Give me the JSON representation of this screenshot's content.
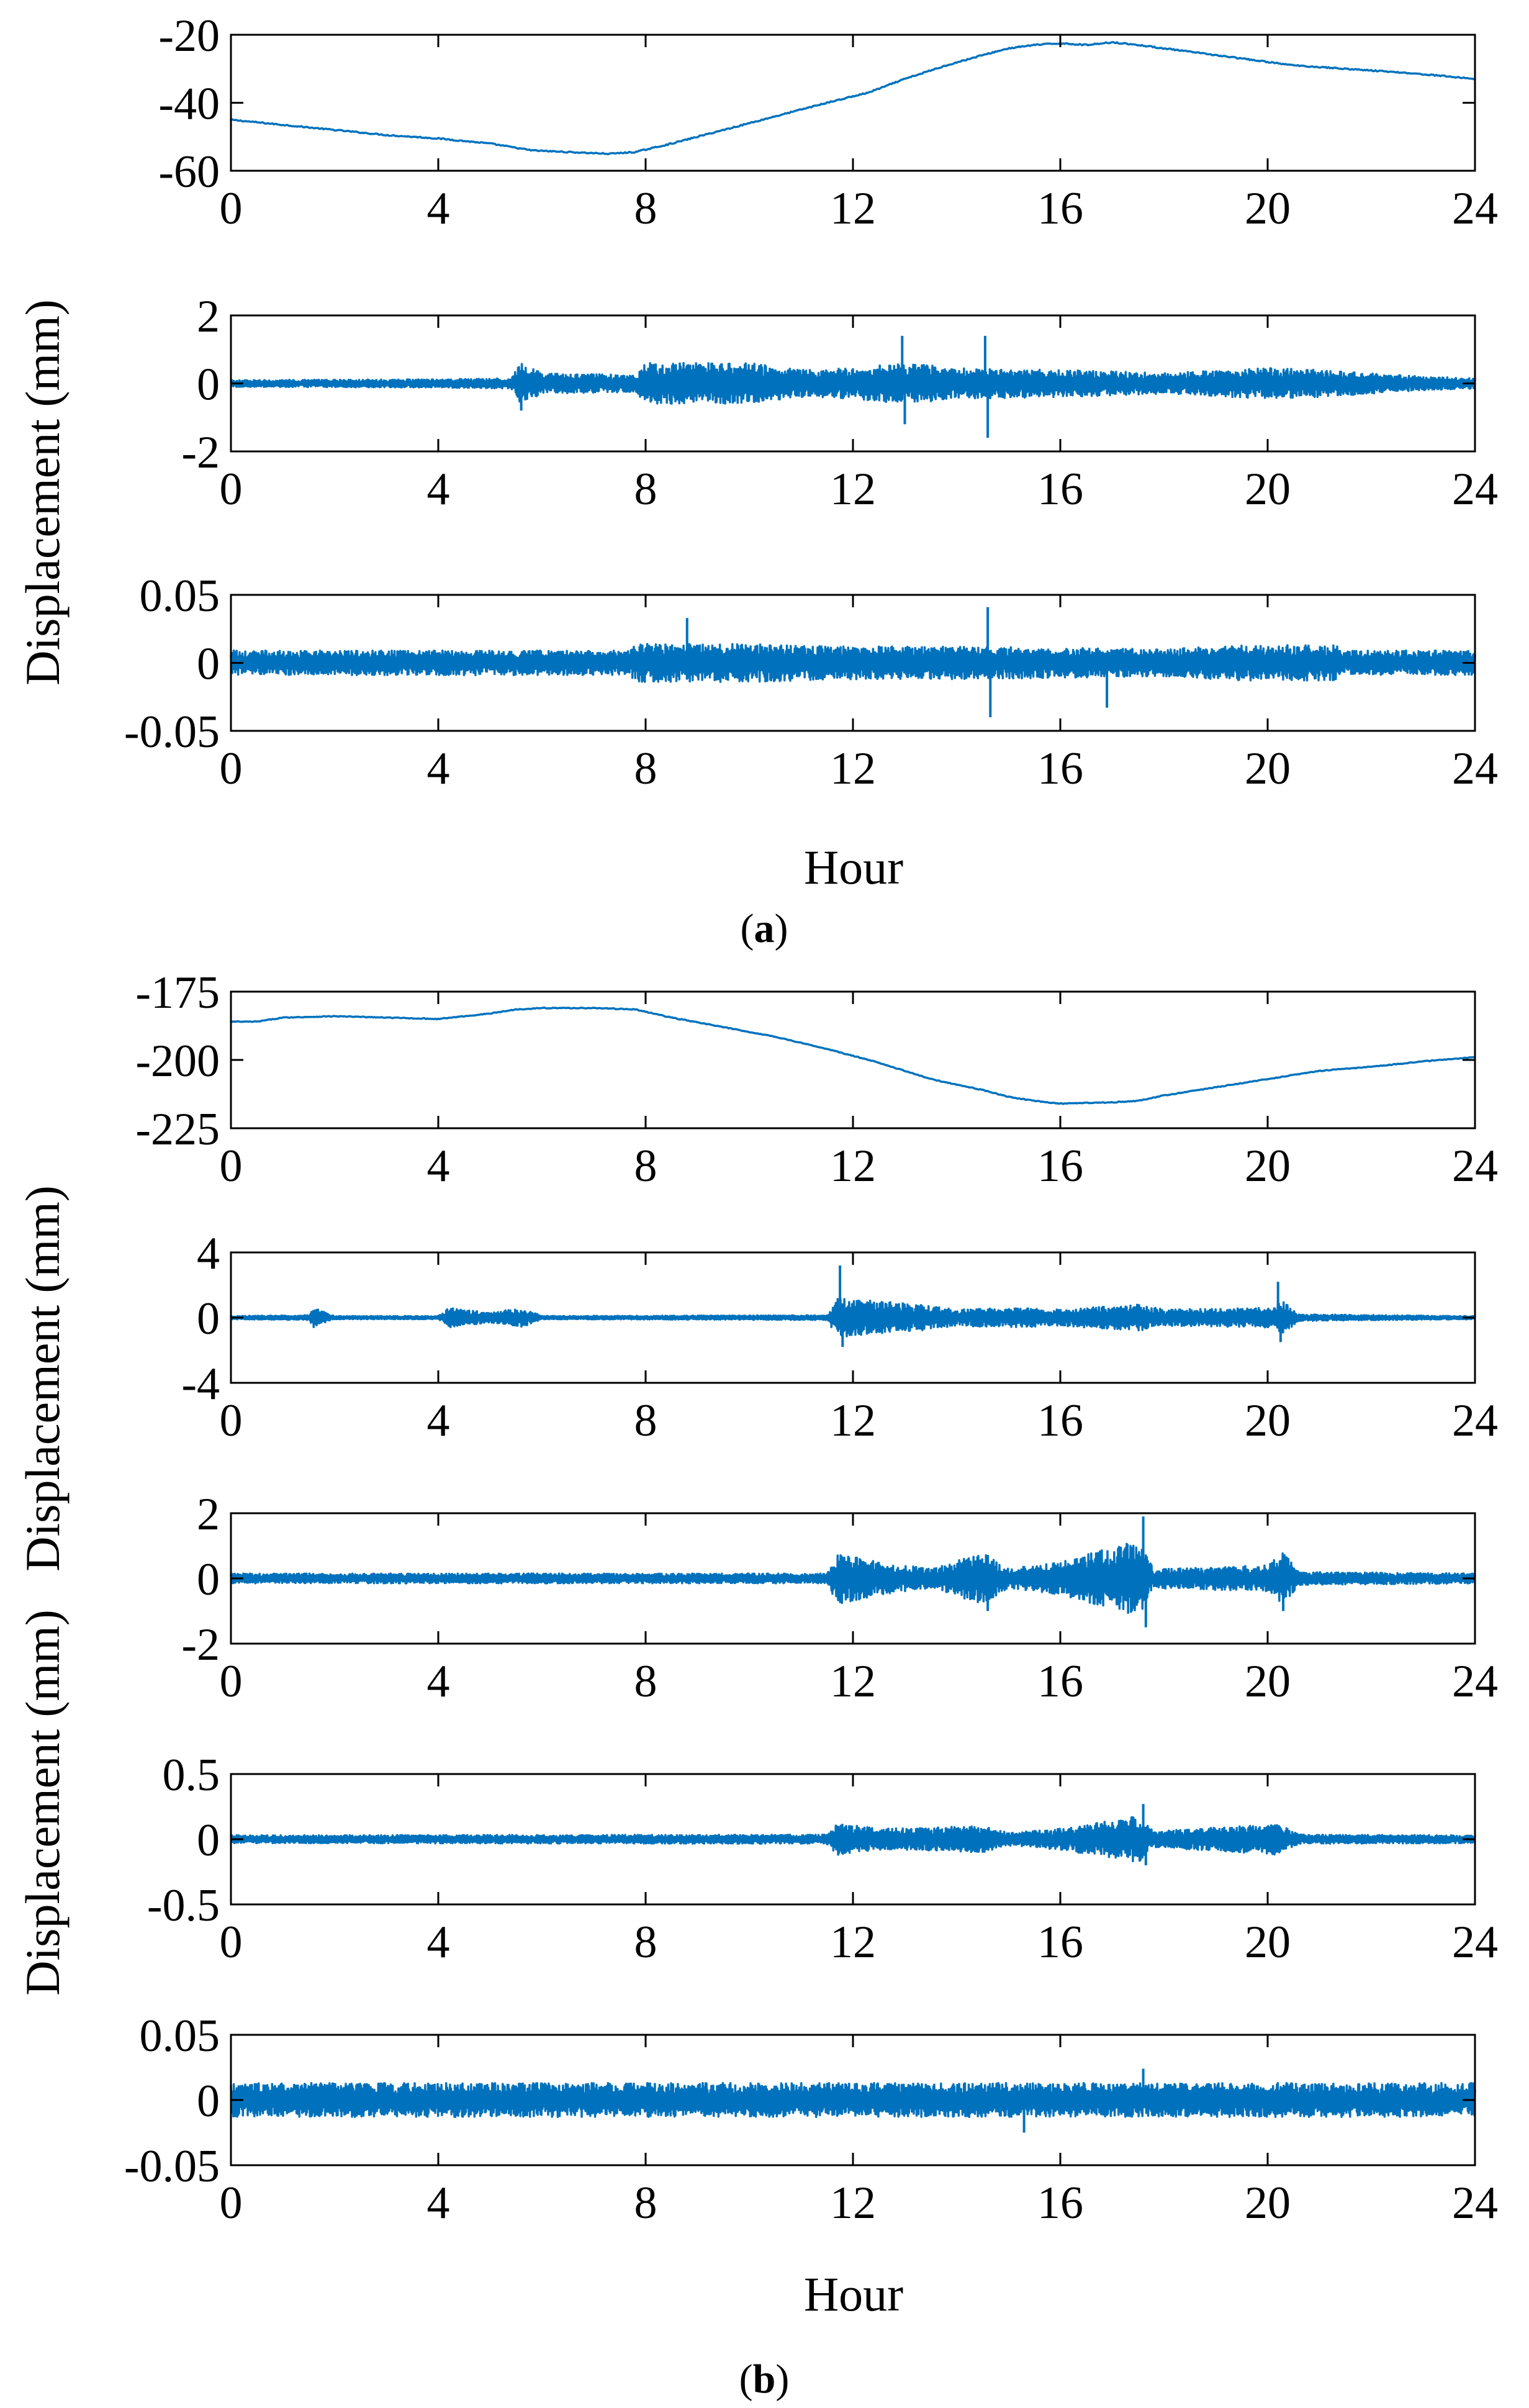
{
  "figure": {
    "panel_a_label": {
      "open": "(",
      "letter": "a",
      "close": ")"
    },
    "panel_b_label": {
      "open": "(",
      "letter": "b",
      "close": ")"
    },
    "xlabel": "Hour",
    "ylabel": "Displacement (mm)"
  },
  "colors": {
    "series": "#0072BD",
    "axis": "#000000"
  },
  "chart_data": [
    {
      "type": "line",
      "group": "a",
      "subplot": 1,
      "title": "",
      "xlabel": "",
      "ylabel": "Displacement (mm)",
      "xlim": [
        0,
        24
      ],
      "ylim": [
        -60,
        -20
      ],
      "xticks": [
        "0",
        "4",
        "8",
        "12",
        "16",
        "20",
        "24"
      ],
      "yticks": [
        "-20",
        "-40",
        "-60"
      ],
      "x": [
        0,
        1,
        2,
        3,
        4,
        5,
        5.8,
        6.5,
        7.3,
        7.8,
        8.5,
        9.5,
        10.5,
        11.5,
        12.3,
        13,
        13.8,
        14.5,
        15,
        15.5,
        16,
        16.5,
        17,
        17.5,
        18.5,
        19.5,
        20.5,
        21.5,
        22.5,
        23.3,
        24
      ],
      "y": [
        -45,
        -46.5,
        -48,
        -49.5,
        -50.5,
        -52,
        -54,
        -54.5,
        -55,
        -54.5,
        -52,
        -48,
        -44,
        -40,
        -37,
        -33,
        -29,
        -26,
        -24,
        -23,
        -22.5,
        -23,
        -22.2,
        -23,
        -25,
        -27,
        -29,
        -30,
        -31,
        -32,
        -33
      ],
      "noise": 0.35
    },
    {
      "type": "line",
      "group": "a",
      "subplot": 2,
      "title": "",
      "xlabel": "",
      "ylabel": "",
      "xlim": [
        0,
        24
      ],
      "ylim": [
        -2,
        2
      ],
      "xticks": [
        "0",
        "4",
        "8",
        "12",
        "16",
        "20",
        "24"
      ],
      "yticks": [
        "2",
        "0",
        "-2"
      ],
      "envelope": [
        [
          0,
          0.1
        ],
        [
          4,
          0.12
        ],
        [
          5.4,
          0.15
        ],
        [
          5.6,
          0.6
        ],
        [
          6,
          0.3
        ],
        [
          7.8,
          0.25
        ],
        [
          8,
          0.6
        ],
        [
          10,
          0.6
        ],
        [
          11,
          0.4
        ],
        [
          12,
          0.45
        ],
        [
          13,
          0.6
        ],
        [
          14,
          0.45
        ],
        [
          16,
          0.4
        ],
        [
          17,
          0.35
        ],
        [
          18,
          0.3
        ],
        [
          20,
          0.45
        ],
        [
          21,
          0.4
        ],
        [
          22,
          0.3
        ],
        [
          23,
          0.2
        ],
        [
          24,
          0.15
        ]
      ],
      "spikes": [
        {
          "x": 5.6,
          "y": -0.8
        },
        {
          "x": 12.95,
          "y": 1.4
        },
        {
          "x": 13.0,
          "y": -1.2
        },
        {
          "x": 14.55,
          "y": 1.4
        },
        {
          "x": 14.6,
          "y": -1.6
        }
      ]
    },
    {
      "type": "line",
      "group": "a",
      "subplot": 3,
      "title": "",
      "xlabel": "Hour",
      "ylabel": "",
      "xlim": [
        0,
        24
      ],
      "ylim": [
        -0.05,
        0.05
      ],
      "xticks": [
        "0",
        "4",
        "8",
        "12",
        "16",
        "20",
        "24"
      ],
      "yticks": [
        "0.05",
        "0",
        "-0.05"
      ],
      "envelope": [
        [
          0,
          0.009
        ],
        [
          7.7,
          0.009
        ],
        [
          7.8,
          0.014
        ],
        [
          10,
          0.014
        ],
        [
          12,
          0.012
        ],
        [
          14,
          0.012
        ],
        [
          16,
          0.011
        ],
        [
          18,
          0.01
        ],
        [
          19.5,
          0.013
        ],
        [
          21.3,
          0.013
        ],
        [
          21.5,
          0.009
        ],
        [
          24,
          0.009
        ]
      ],
      "spikes": [
        {
          "x": 8.8,
          "y": 0.033
        },
        {
          "x": 14.6,
          "y": 0.041
        },
        {
          "x": 14.65,
          "y": -0.04
        },
        {
          "x": 16.9,
          "y": -0.033
        }
      ]
    },
    {
      "type": "line",
      "group": "b",
      "subplot": 1,
      "title": "",
      "xlabel": "",
      "ylabel": "",
      "xlim": [
        0,
        24
      ],
      "ylim": [
        -225,
        -175
      ],
      "xticks": [
        "0",
        "4",
        "8",
        "12",
        "16",
        "20",
        "24"
      ],
      "yticks": [
        "-175",
        "-200",
        "-225"
      ],
      "x": [
        0,
        0.5,
        1,
        2,
        3,
        4,
        4.5,
        5,
        5.5,
        6,
        7,
        7.8,
        8.5,
        9.5,
        10.5,
        11.5,
        12.5,
        13.5,
        14.5,
        15,
        15.5,
        16,
        17,
        17.5,
        18,
        19,
        20,
        20.5,
        21,
        22,
        23,
        24
      ],
      "y": [
        -186,
        -186,
        -184.5,
        -184,
        -184.5,
        -185,
        -184,
        -183,
        -181.5,
        -181,
        -181,
        -181.5,
        -184.5,
        -188,
        -191.5,
        -196,
        -201,
        -207,
        -211,
        -213.5,
        -215,
        -216,
        -215.5,
        -215,
        -213,
        -210,
        -207,
        -205.5,
        -204,
        -202.5,
        -200.5,
        -199
      ]
    },
    {
      "type": "line",
      "group": "b",
      "subplot": 2,
      "title": "",
      "xlabel": "",
      "ylabel": "Displacement (mm)",
      "xlim": [
        0,
        24
      ],
      "ylim": [
        -4,
        4
      ],
      "xticks": [
        "0",
        "4",
        "8",
        "12",
        "16",
        "20",
        "24"
      ],
      "yticks": [
        "4",
        "0",
        "-4"
      ],
      "envelope": [
        [
          0,
          0.1
        ],
        [
          1.5,
          0.15
        ],
        [
          1.6,
          0.6
        ],
        [
          2,
          0.1
        ],
        [
          4,
          0.1
        ],
        [
          4.2,
          0.6
        ],
        [
          5,
          0.3
        ],
        [
          5.6,
          0.6
        ],
        [
          6,
          0.1
        ],
        [
          11.5,
          0.15
        ],
        [
          11.7,
          1.2
        ],
        [
          13,
          0.9
        ],
        [
          14,
          0.5
        ],
        [
          15,
          0.6
        ],
        [
          16,
          0.5
        ],
        [
          17.5,
          0.8
        ],
        [
          18,
          0.5
        ],
        [
          20,
          0.6
        ],
        [
          20.3,
          1.0
        ],
        [
          20.6,
          0.2
        ],
        [
          24,
          0.1
        ]
      ],
      "spikes": [
        {
          "x": 11.75,
          "y": 3.2
        },
        {
          "x": 11.8,
          "y": -1.8
        },
        {
          "x": 20.2,
          "y": 2.2
        },
        {
          "x": 20.25,
          "y": -1.5
        }
      ]
    },
    {
      "type": "line",
      "group": "b",
      "subplot": 3,
      "title": "",
      "xlabel": "",
      "ylabel": "",
      "xlim": [
        0,
        24
      ],
      "ylim": [
        -2,
        2
      ],
      "xticks": [
        "0",
        "4",
        "8",
        "12",
        "16",
        "20",
        "24"
      ],
      "yticks": [
        "2",
        "0",
        "-2"
      ],
      "envelope": [
        [
          0,
          0.15
        ],
        [
          11.5,
          0.15
        ],
        [
          11.7,
          0.8
        ],
        [
          12.5,
          0.5
        ],
        [
          13.5,
          0.3
        ],
        [
          14.5,
          0.8
        ],
        [
          15,
          0.3
        ],
        [
          16,
          0.5
        ],
        [
          17.5,
          1.2
        ],
        [
          17.8,
          0.3
        ],
        [
          20,
          0.4
        ],
        [
          20.3,
          0.8
        ],
        [
          20.6,
          0.2
        ],
        [
          24,
          0.15
        ]
      ],
      "spikes": [
        {
          "x": 17.6,
          "y": 1.9
        },
        {
          "x": 17.65,
          "y": -1.5
        },
        {
          "x": 14.6,
          "y": -1.0
        },
        {
          "x": 20.3,
          "y": -1.0
        }
      ]
    },
    {
      "type": "line",
      "group": "b",
      "subplot": 4,
      "title": "",
      "xlabel": "",
      "ylabel": "Displacement (mm)",
      "xlim": [
        0,
        24
      ],
      "ylim": [
        -0.5,
        0.5
      ],
      "xticks": [
        "0",
        "4",
        "8",
        "12",
        "16",
        "20",
        "24"
      ],
      "yticks": [
        "0.5",
        "0",
        "-0.5"
      ],
      "envelope": [
        [
          0,
          0.03
        ],
        [
          11.5,
          0.035
        ],
        [
          11.7,
          0.12
        ],
        [
          12.5,
          0.08
        ],
        [
          14.5,
          0.1
        ],
        [
          15,
          0.05
        ],
        [
          16,
          0.08
        ],
        [
          17.5,
          0.18
        ],
        [
          17.8,
          0.06
        ],
        [
          20.2,
          0.12
        ],
        [
          20.6,
          0.035
        ],
        [
          24,
          0.03
        ]
      ],
      "spikes": [
        {
          "x": 17.6,
          "y": 0.27
        },
        {
          "x": 17.65,
          "y": -0.2
        }
      ]
    },
    {
      "type": "line",
      "group": "b",
      "subplot": 5,
      "title": "",
      "xlabel": "Hour",
      "ylabel": "",
      "xlim": [
        0,
        24
      ],
      "ylim": [
        -0.05,
        0.05
      ],
      "xticks": [
        "0",
        "4",
        "8",
        "12",
        "16",
        "20",
        "24"
      ],
      "yticks": [
        "0.05",
        "0",
        "-0.05"
      ],
      "envelope": [
        [
          0,
          0.013
        ],
        [
          24,
          0.013
        ]
      ],
      "spikes": [
        {
          "x": 17.6,
          "y": 0.024
        },
        {
          "x": 15.3,
          "y": -0.025
        }
      ]
    }
  ]
}
